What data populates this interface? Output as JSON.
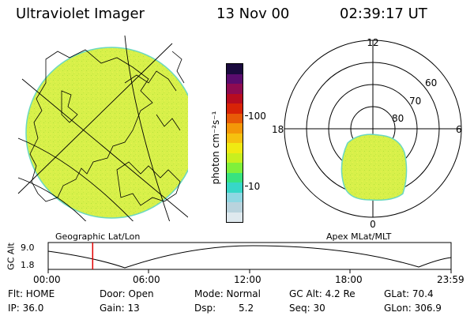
{
  "header": {
    "title": "Ultraviolet Imager",
    "date": "13 Nov 00",
    "time": "02:39:17 UT"
  },
  "colorbar": {
    "unit": "photon cm⁻²s⁻¹",
    "tick_100": "100",
    "tick_10": "10",
    "colors": [
      "#dfe9ee",
      "#b9d3dd",
      "#8fd7e2",
      "#37d7c7",
      "#38e37f",
      "#7ff03b",
      "#c8ef1f",
      "#f0ea12",
      "#f6c10f",
      "#f49708",
      "#e85a07",
      "#d82307",
      "#b80c20",
      "#8e0b51",
      "#5a0c6e",
      "#1a0a3e"
    ]
  },
  "geo_panel": {
    "label": "Geographic Lat/Lon",
    "fill_color": "#d8f04a"
  },
  "polar_panel": {
    "label": "Apex MLat/MLT",
    "mlt_12": "12",
    "mlt_18": "18",
    "mlt_6": "6",
    "mlt_0": "0",
    "lat_60": "60",
    "lat_70": "70",
    "lat_80": "80"
  },
  "timeline": {
    "axis_label": "GC Alt",
    "y_top": "9.0",
    "y_bottom": "1.8",
    "ticks": [
      "00:00",
      "06:00",
      "12:00",
      "18:00",
      "23:59"
    ],
    "marker_time_hours": 2.65,
    "marker_color": "#e00000"
  },
  "info": {
    "flt": "Flt: HOME",
    "door": "Door: Open",
    "mode": "Mode: Normal",
    "gcalt": "GC Alt: 4.2 Re",
    "glat": "GLat:  70.4",
    "ip": "IP: 36.0",
    "gain": "Gain: 13",
    "dsp_label": "Dsp:",
    "dsp_value": "5.2",
    "seq": "Seq: 30",
    "glon": "GLon: 306.9"
  }
}
